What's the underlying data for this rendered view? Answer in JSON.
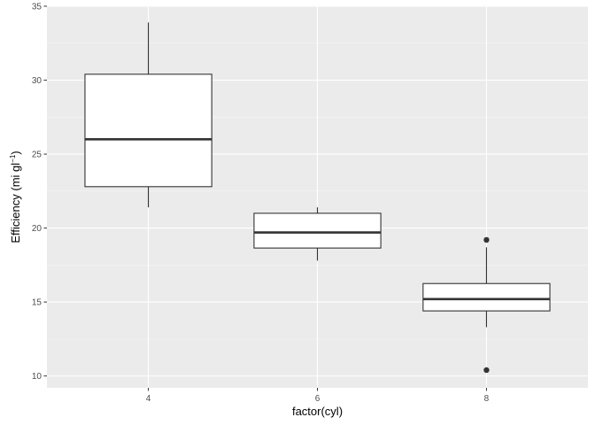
{
  "chart_data": {
    "type": "boxplot",
    "title": "",
    "xlabel": "factor(cyl)",
    "ylabel": {
      "base": "Efficiency (mi gl",
      "superscript": "−1",
      "close": ")"
    },
    "categories": [
      "4",
      "6",
      "8"
    ],
    "y_ticks": [
      10,
      15,
      20,
      25,
      30,
      35
    ],
    "y_tick_labels": [
      "10",
      "15",
      "20",
      "25",
      "30",
      "35"
    ],
    "ylim": [
      9.2,
      35.0
    ],
    "grid": true,
    "legend": "none",
    "colors": {
      "panel": "#ebebeb",
      "grid_major": "#ffffff",
      "grid_minor": "#f5f5f5",
      "box_fill": "#ffffff",
      "box_line": "#333333",
      "tick_text": "#4d4d4d",
      "tick_mark": "#333333",
      "title_text": "#000000"
    },
    "boxes": [
      {
        "category": "4",
        "whisker_low": 21.4,
        "q1": 22.8,
        "median": 26.0,
        "q3": 30.4,
        "whisker_high": 33.9,
        "outliers": []
      },
      {
        "category": "6",
        "whisker_low": 17.8,
        "q1": 18.65,
        "median": 19.7,
        "q3": 21.0,
        "whisker_high": 21.4,
        "outliers": []
      },
      {
        "category": "8",
        "whisker_low": 13.3,
        "q1": 14.4,
        "median": 15.2,
        "q3": 16.25,
        "whisker_high": 18.7,
        "outliers": [
          10.4,
          19.2
        ]
      }
    ]
  }
}
